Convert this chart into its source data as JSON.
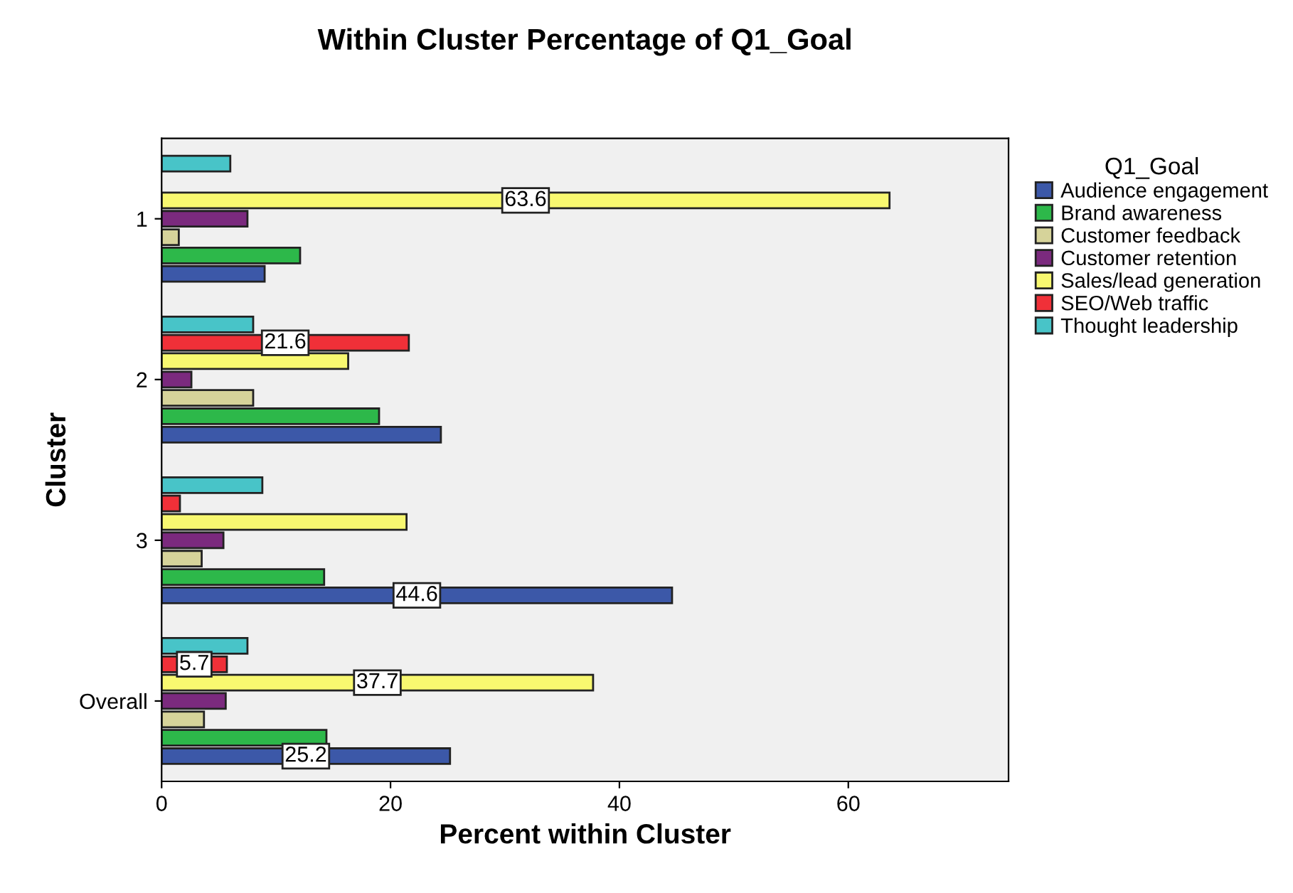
{
  "chart_data": {
    "type": "bar",
    "orientation": "horizontal",
    "title": "Within Cluster Percentage of Q1_Goal",
    "xlabel": "Percent within Cluster",
    "ylabel": "Cluster",
    "legend_title": "Q1_Goal",
    "legend": "right",
    "grid": false,
    "categories": [
      "1",
      "2",
      "3",
      "Overall"
    ],
    "xlim": [
      0,
      74
    ],
    "xticks": [
      0,
      20,
      40,
      60
    ],
    "series": [
      {
        "name": "Audience engagement",
        "color": "#3c58a8",
        "values": [
          9.0,
          24.4,
          44.6,
          25.2
        ],
        "value_labels": [
          null,
          null,
          "44.6",
          "25.2"
        ]
      },
      {
        "name": "Brand awareness",
        "color": "#2db84a",
        "values": [
          12.1,
          19.0,
          14.2,
          14.4
        ],
        "value_labels": [
          null,
          null,
          null,
          null
        ]
      },
      {
        "name": "Customer feedback",
        "color": "#d6d39a",
        "values": [
          1.5,
          8.0,
          3.5,
          3.7
        ],
        "value_labels": [
          null,
          null,
          null,
          null
        ]
      },
      {
        "name": "Customer retention",
        "color": "#7b2a7e",
        "values": [
          7.5,
          2.6,
          5.4,
          5.6
        ],
        "value_labels": [
          null,
          null,
          null,
          null
        ]
      },
      {
        "name": "Sales/lead generation",
        "color": "#f8f870",
        "values": [
          63.6,
          16.3,
          21.4,
          37.7
        ],
        "value_labels": [
          "63.6",
          null,
          null,
          "37.7"
        ]
      },
      {
        "name": "SEO/Web traffic",
        "color": "#f03038",
        "values": [
          null,
          21.6,
          1.6,
          5.7
        ],
        "value_labels": [
          null,
          "21.6",
          null,
          "5.7"
        ]
      },
      {
        "name": "Thought leadership",
        "color": "#48c4c8",
        "values": [
          6.0,
          8.0,
          8.8,
          7.5
        ],
        "value_labels": [
          null,
          null,
          null,
          null
        ]
      }
    ]
  }
}
